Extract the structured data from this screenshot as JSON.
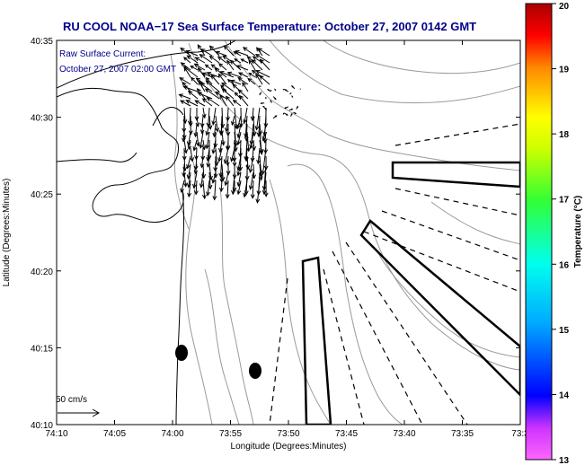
{
  "title": "RU COOL  NOAA−17  Sea Surface Temperature:  October 27, 2007 0142 GMT",
  "annotations": {
    "line1": "Raw Surface Current:",
    "line2": "October 27, 2007 02:00 GMT"
  },
  "axes": {
    "xlabel": "Longitude (Degrees:Minutes)",
    "ylabel": "Latitude (Degrees:Minutes)",
    "x_ticks": [
      "74:10",
      "74:05",
      "74:00",
      "73:55",
      "73:50",
      "73:45",
      "73:40",
      "73:35",
      "73:3"
    ],
    "y_ticks": [
      "40:35",
      "40:30",
      "40:25",
      "40:20",
      "40:15",
      "40:10"
    ]
  },
  "scale_bar": {
    "label": "50 cm/s"
  },
  "colorbar": {
    "label": "Temperature (°C)",
    "ticks": [
      "20",
      "19",
      "18",
      "17",
      "16",
      "15",
      "14",
      "13"
    ],
    "range": [
      13,
      20
    ]
  },
  "colors": {
    "title": "#00008b",
    "coast": "#000000",
    "bathymetry": "#9a9a9a"
  }
}
